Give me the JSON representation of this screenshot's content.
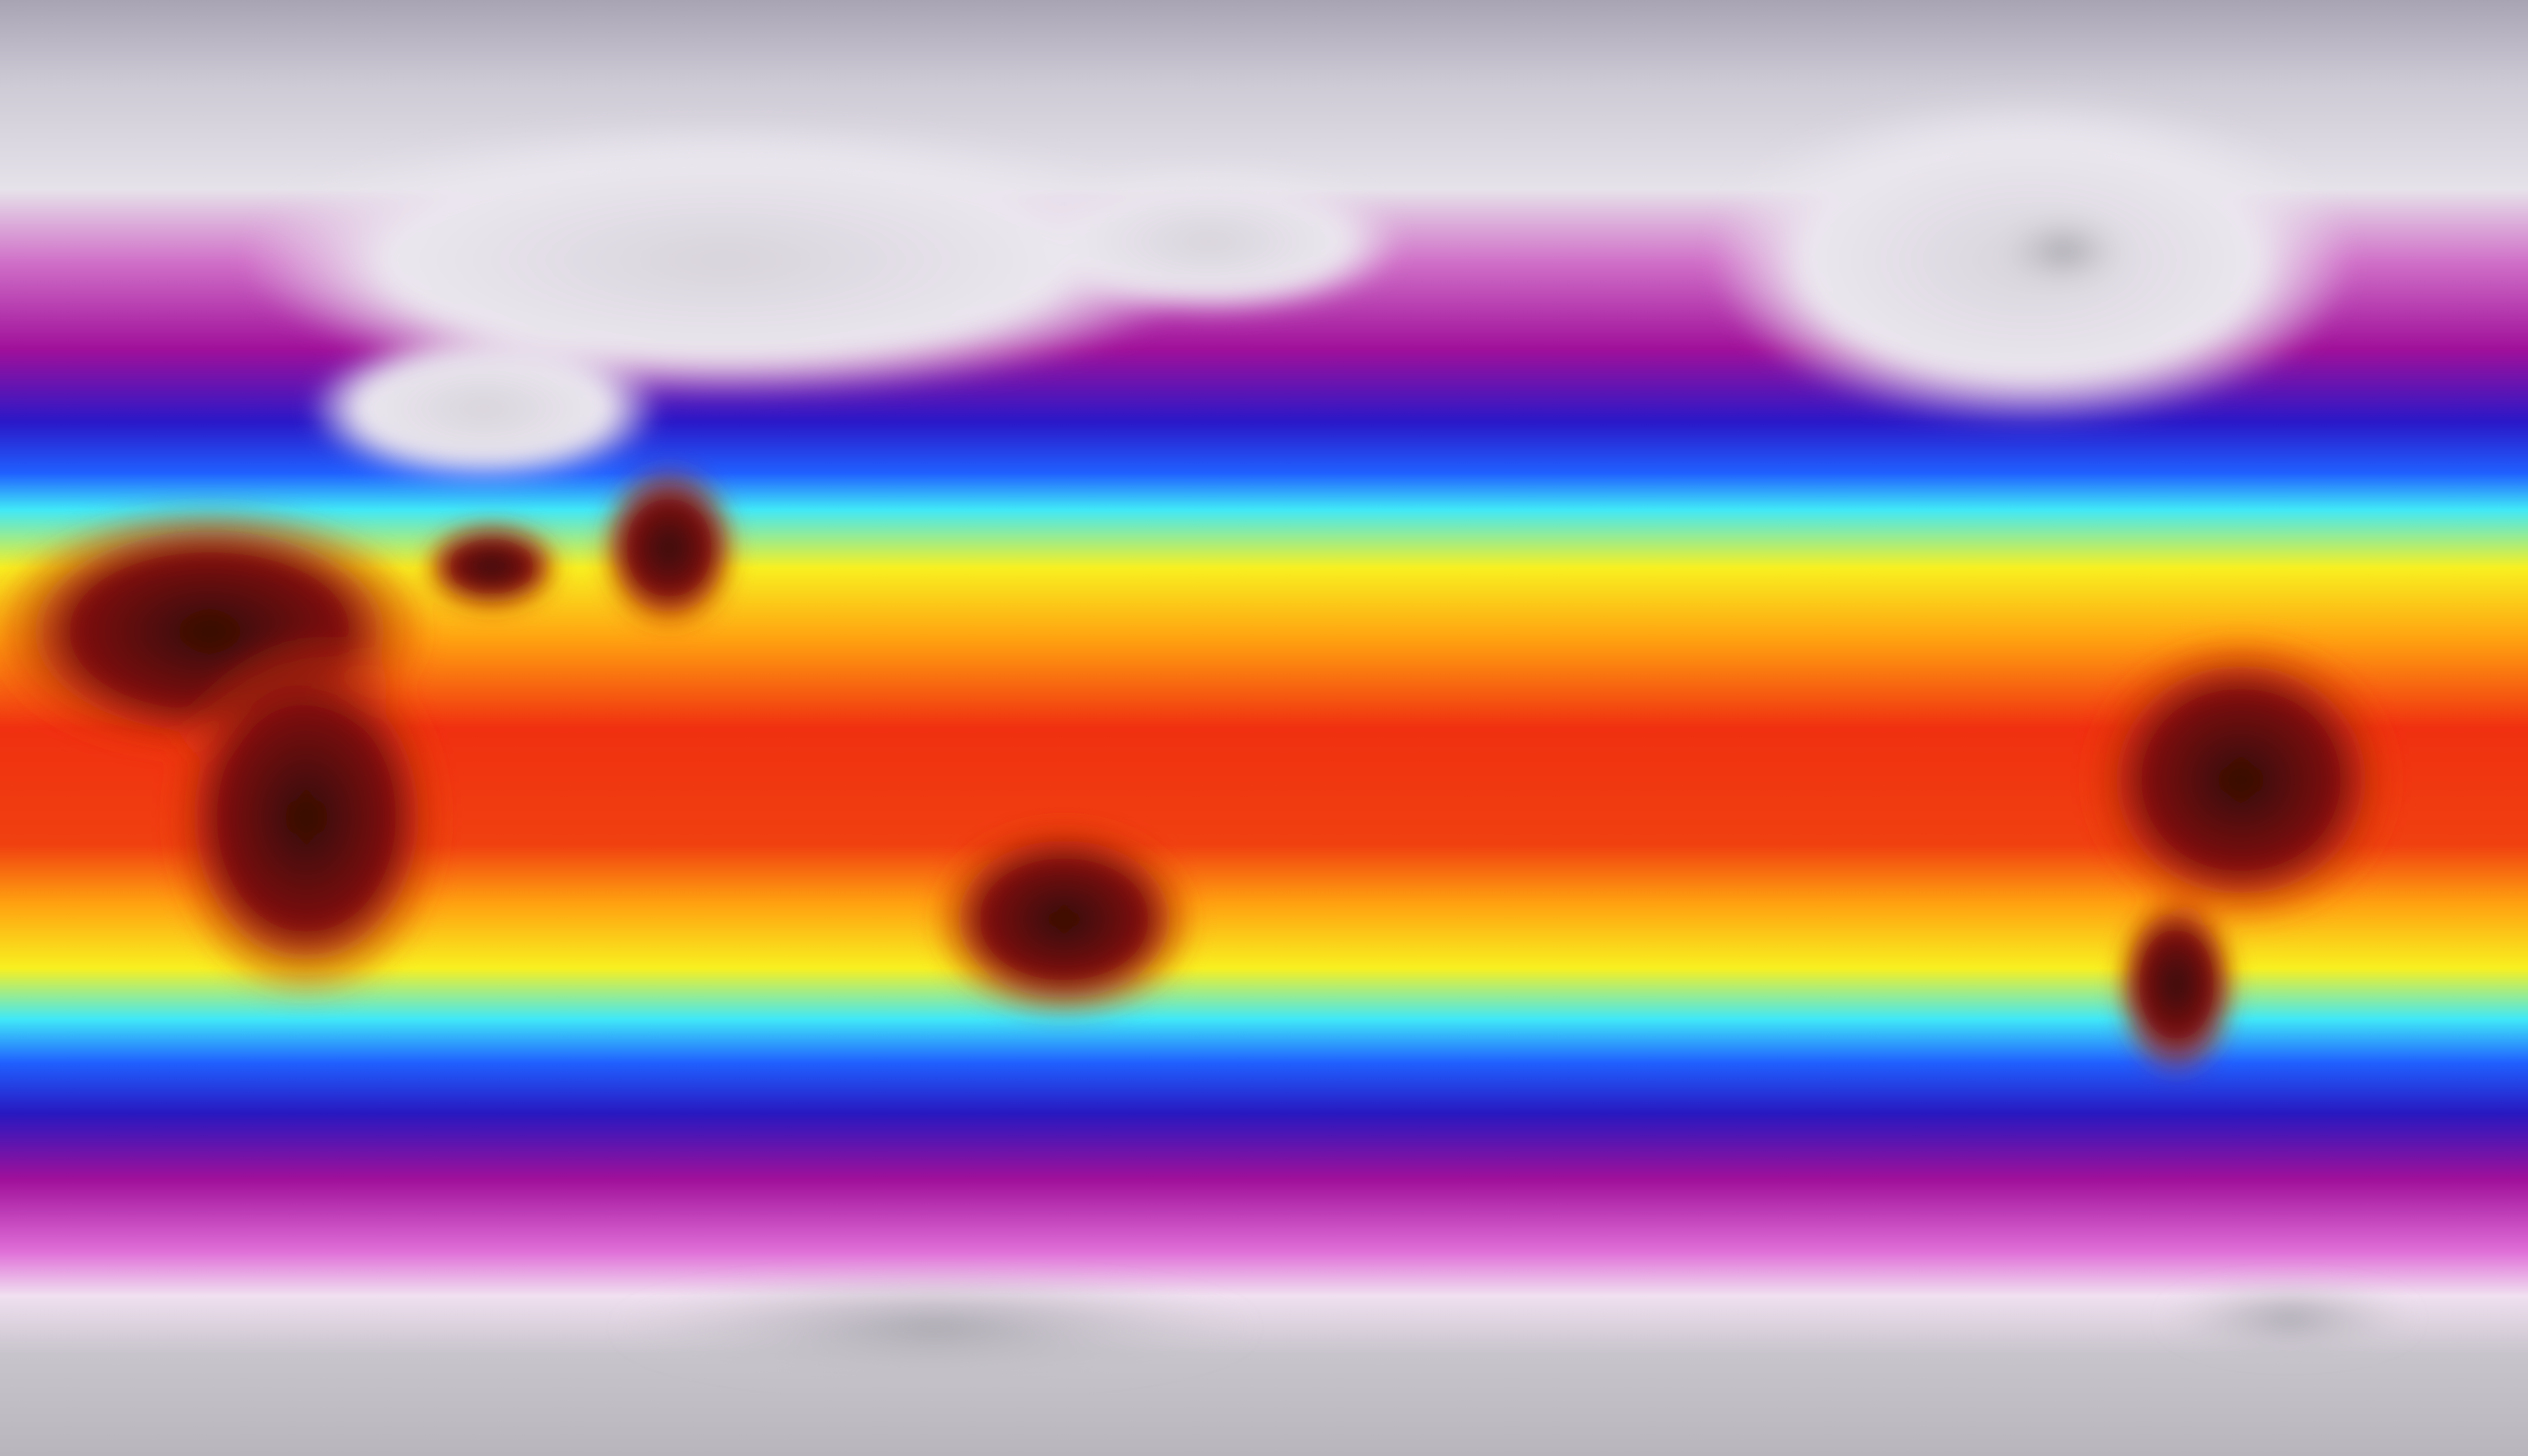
{
  "map": {
    "projection": "equirectangular",
    "field": "temperature",
    "colormap": [
      "#a8a4b4",
      "#e6e2ea",
      "#f0d8f0",
      "#b0189c",
      "#2a18c8",
      "#1848ff",
      "#40e8f8",
      "#f8f020",
      "#ffa010",
      "#ff5010",
      "#e81808",
      "#3a0808"
    ],
    "colors": {
      "polar": "#b8b4c0",
      "ice": "#e4e0e8",
      "cold": "#b0189c",
      "cool": "#2020e0",
      "mild": "#40e0f0",
      "warm": "#f8f020",
      "hot": "#f02010",
      "very_hot": "#300606"
    }
  }
}
